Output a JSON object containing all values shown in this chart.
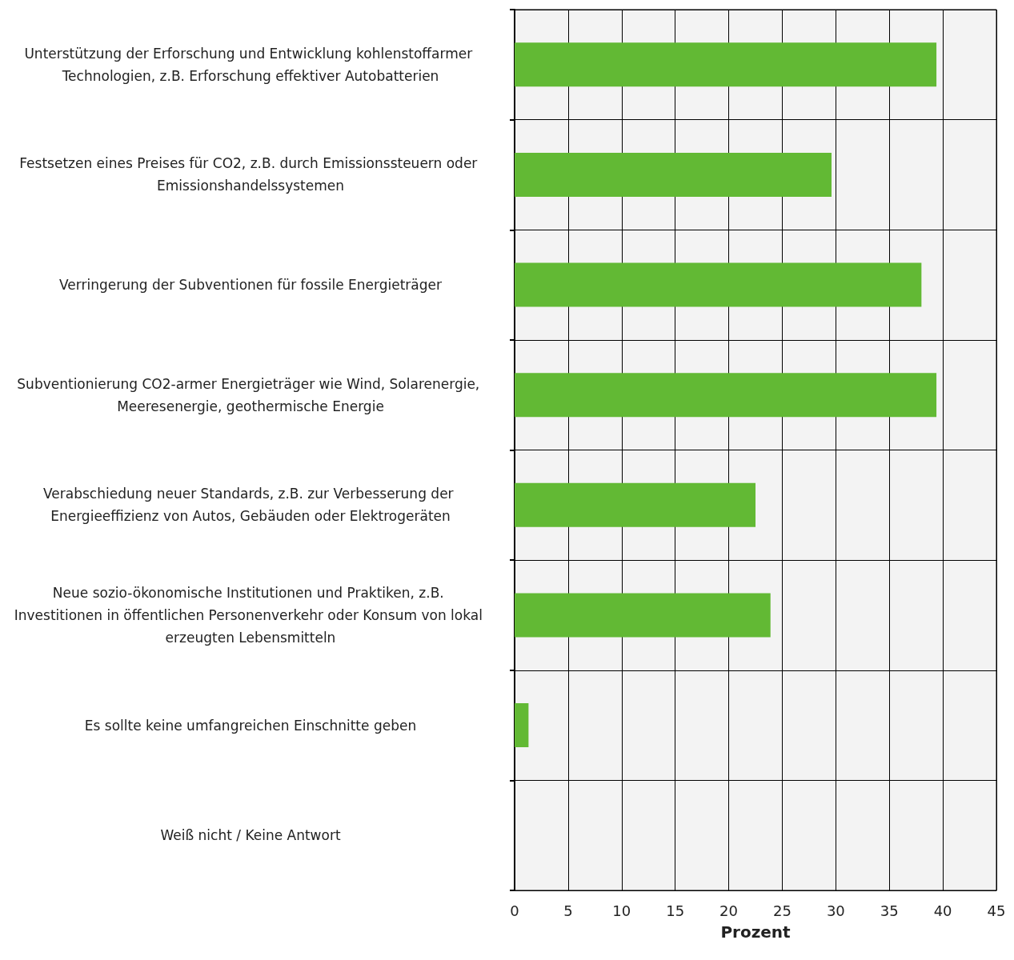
{
  "chart_data": {
    "type": "bar",
    "orientation": "horizontal",
    "xlabel": "Prozent",
    "categories": [
      "Unterstützung der Erforschung und Entwicklung kohlenstoffarmer Technologien, z.B. Erforschung effektiver Autobatterien",
      "Festsetzen eines Preises für CO2, z.B. durch Emissionssteuern oder Emissionshandelssystemen",
      "Verringerung der Subventionen für fossile Energieträger",
      "Subventionierung CO2-armer Energieträger wie Wind, Solarenergie, Meeresenergie, geothermische Energie",
      "Verabschiedung neuer Standards, z.B. zur Verbesserung der Energieeffizienz von Autos, Gebäuden oder Elektrogeräten",
      "Neue sozio-ökonomische Institutionen und Praktiken, z.B. Investitionen in öffentlichen Personenverkehr oder Konsum von lokal erzeugten Lebensmitteln",
      "Es sollte keine umfangreichen Einschnitte geben",
      "Weiß nicht / Keine Antwort"
    ],
    "values": [
      39.4,
      29.6,
      38.0,
      39.4,
      22.5,
      23.9,
      1.3,
      0
    ],
    "color": "#62b934",
    "xlim": [
      0,
      45
    ],
    "xticks": [
      0,
      5,
      10,
      15,
      20,
      25,
      30,
      35,
      40,
      45
    ],
    "grid": true
  }
}
